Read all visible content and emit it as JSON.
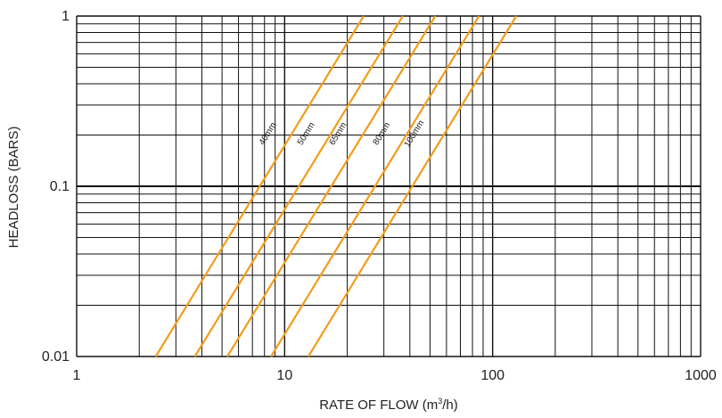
{
  "chart_data": {
    "type": "line",
    "title": "",
    "xlabel_prefix": "RATE OF FLOW (m",
    "xlabel_sup": "3",
    "xlabel_suffix": "/h)",
    "ylabel": "HEADLOSS (BARS)",
    "x_scale": "log",
    "y_scale": "log",
    "xlim": [
      1,
      1000
    ],
    "ylim": [
      0.01,
      1
    ],
    "x_ticks": [
      {
        "value": 1,
        "label": "1"
      },
      {
        "value": 10,
        "label": "10"
      },
      {
        "value": 100,
        "label": "100"
      },
      {
        "value": 1000,
        "label": "1000"
      }
    ],
    "y_ticks": [
      {
        "value": 1,
        "label": "1"
      },
      {
        "value": 0.1,
        "label": "0.1"
      },
      {
        "value": 0.01,
        "label": "0.01"
      }
    ],
    "grid": true,
    "line_color": "#F39C1A",
    "series": [
      {
        "name": "40mm",
        "points": [
          [
            2.4,
            0.01
          ],
          [
            24,
            1
          ]
        ],
        "label_at": [
          8.5,
          0.2
        ]
      },
      {
        "name": "50mm",
        "points": [
          [
            3.7,
            0.01
          ],
          [
            37,
            1
          ]
        ],
        "label_at": [
          13,
          0.2
        ]
      },
      {
        "name": "65mm",
        "points": [
          [
            5.3,
            0.01
          ],
          [
            53,
            1
          ]
        ],
        "label_at": [
          18.5,
          0.2
        ]
      },
      {
        "name": "80mm",
        "points": [
          [
            8.6,
            0.01
          ],
          [
            86,
            1
          ]
        ],
        "label_at": [
          30,
          0.2
        ]
      },
      {
        "name": "100mm",
        "points": [
          [
            13,
            0.01
          ],
          [
            130,
            1
          ]
        ],
        "label_at": [
          43,
          0.2
        ]
      }
    ]
  }
}
